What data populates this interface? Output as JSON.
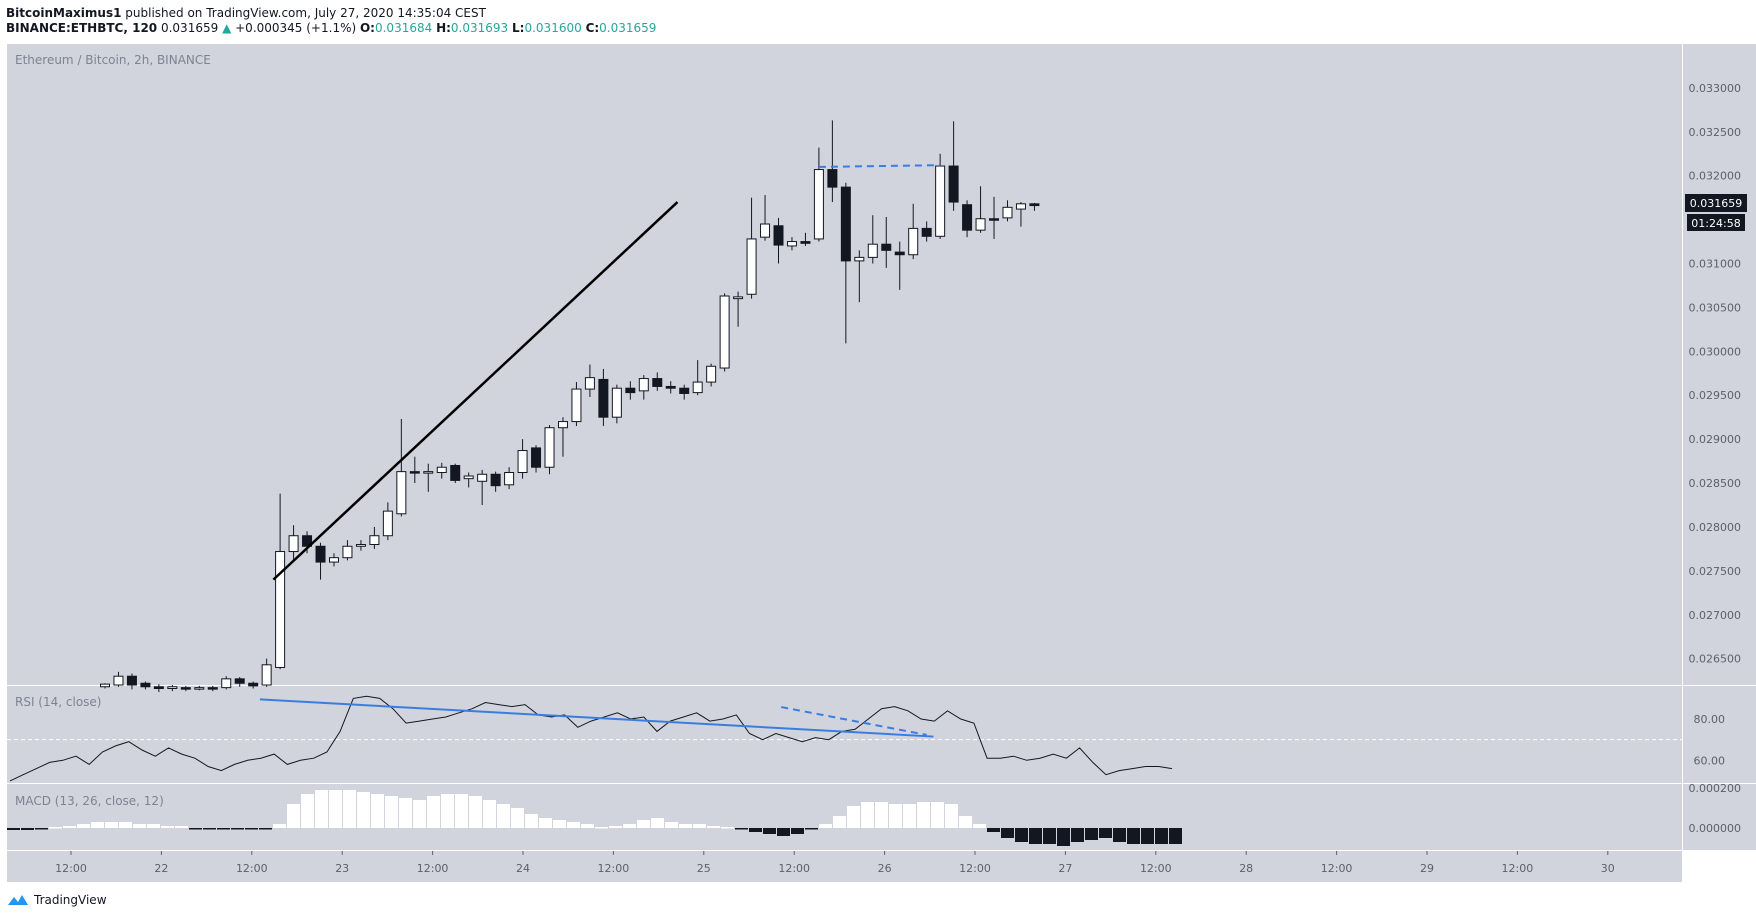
{
  "header": {
    "author": "BitcoinMaximus1",
    "published_text": "published on TradingView.com, July 27, 2020 14:35:04 CEST",
    "symbol": "BINANCE:ETHBTC, 120",
    "last": "0.031659",
    "change_arrow": "▲",
    "change": "+0.000345 (+1.1%)",
    "o_label": "O:",
    "o": "0.031684",
    "h_label": "H:",
    "h": "0.031693",
    "l_label": "L:",
    "l": "0.031600",
    "c_label": "C:",
    "c": "0.031659"
  },
  "footer": {
    "brand": "TradingView"
  },
  "colors": {
    "pane_bg": "#d1d4dc",
    "up_body": "#ffffff",
    "down_body": "#131722",
    "trendline": "#000000",
    "divergence_line": "#3a7de0",
    "rsi_line": "#131722",
    "accent_green": "#26a69a"
  },
  "chart_data": [
    {
      "type": "candlestick",
      "title": "Ethereum / Bitcoin, 2h, BINANCE",
      "x_ticks": [
        "12:00",
        "22",
        "12:00",
        "23",
        "12:00",
        "24",
        "12:00",
        "25",
        "12:00",
        "26",
        "12:00",
        "27",
        "12:00",
        "28",
        "12:00",
        "29",
        "12:00",
        "30"
      ],
      "y_ticks": [
        "0.033000",
        "0.032500",
        "0.032000",
        "0.031500",
        "0.031000",
        "0.030500",
        "0.030000",
        "0.029500",
        "0.029000",
        "0.028500",
        "0.028000",
        "0.027500",
        "0.027000",
        "0.026500"
      ],
      "ylim": [
        0.0262,
        0.0335
      ],
      "last_price_label": "0.031659",
      "countdown_label": "01:24:58",
      "candles": [
        [
          0.02618,
          0.02621,
          0.02616,
          0.02622
        ],
        [
          0.0262,
          0.0263,
          0.02618,
          0.02635
        ],
        [
          0.0263,
          0.0262,
          0.02615,
          0.02633
        ],
        [
          0.02622,
          0.02618,
          0.02615,
          0.02624
        ],
        [
          0.02618,
          0.02616,
          0.02612,
          0.02621
        ],
        [
          0.02616,
          0.02618,
          0.02613,
          0.0262
        ],
        [
          0.02617,
          0.02616,
          0.02613,
          0.02619
        ],
        [
          0.02616,
          0.02617,
          0.02614,
          0.02619
        ],
        [
          0.02617,
          0.02616,
          0.02613,
          0.02619
        ],
        [
          0.02617,
          0.02627,
          0.02615,
          0.0263
        ],
        [
          0.02627,
          0.02622,
          0.02618,
          0.02629
        ],
        [
          0.02622,
          0.02619,
          0.02616,
          0.02624
        ],
        [
          0.0262,
          0.02643,
          0.02618,
          0.0265
        ],
        [
          0.0264,
          0.02772,
          0.02638,
          0.02838
        ],
        [
          0.02772,
          0.0279,
          0.02762,
          0.02802
        ],
        [
          0.0279,
          0.02778,
          0.0277,
          0.02795
        ],
        [
          0.02778,
          0.0276,
          0.0274,
          0.02782
        ],
        [
          0.0276,
          0.02765,
          0.02755,
          0.0277
        ],
        [
          0.02765,
          0.02778,
          0.02762,
          0.02785
        ],
        [
          0.02778,
          0.0278,
          0.02773,
          0.02785
        ],
        [
          0.0278,
          0.0279,
          0.02775,
          0.028
        ],
        [
          0.0279,
          0.02818,
          0.02785,
          0.02828
        ],
        [
          0.02815,
          0.02863,
          0.02812,
          0.02923
        ],
        [
          0.02863,
          0.02862,
          0.0285,
          0.0288
        ],
        [
          0.02862,
          0.02863,
          0.0284,
          0.02872
        ],
        [
          0.02862,
          0.02868,
          0.02855,
          0.02873
        ],
        [
          0.0287,
          0.02853,
          0.0285,
          0.02872
        ],
        [
          0.02855,
          0.02858,
          0.02845,
          0.02862
        ],
        [
          0.02852,
          0.0286,
          0.02825,
          0.02865
        ],
        [
          0.0286,
          0.02847,
          0.0284,
          0.02863
        ],
        [
          0.02848,
          0.02862,
          0.02843,
          0.02868
        ],
        [
          0.02862,
          0.02887,
          0.02855,
          0.029
        ],
        [
          0.0289,
          0.02868,
          0.02862,
          0.02893
        ],
        [
          0.02868,
          0.02913,
          0.0286,
          0.02916
        ],
        [
          0.02913,
          0.0292,
          0.0288,
          0.02925
        ],
        [
          0.0292,
          0.02957,
          0.02915,
          0.02965
        ],
        [
          0.02957,
          0.0297,
          0.02948,
          0.02985
        ],
        [
          0.02968,
          0.02925,
          0.02915,
          0.0298
        ],
        [
          0.02925,
          0.02958,
          0.02918,
          0.02962
        ],
        [
          0.02958,
          0.02953,
          0.02945,
          0.02966
        ],
        [
          0.02955,
          0.02969,
          0.02945,
          0.02973
        ],
        [
          0.02969,
          0.0296,
          0.02955,
          0.02976
        ],
        [
          0.0296,
          0.02958,
          0.02952,
          0.02966
        ],
        [
          0.02958,
          0.02952,
          0.02945,
          0.02962
        ],
        [
          0.02953,
          0.02965,
          0.0295,
          0.0299
        ],
        [
          0.02965,
          0.02983,
          0.0296,
          0.02986
        ],
        [
          0.02981,
          0.03063,
          0.02977,
          0.03066
        ],
        [
          0.0306,
          0.03062,
          0.03028,
          0.03068
        ],
        [
          0.03065,
          0.03128,
          0.0306,
          0.03175
        ],
        [
          0.0313,
          0.03145,
          0.03126,
          0.03178
        ],
        [
          0.03143,
          0.03121,
          0.031,
          0.03152
        ],
        [
          0.0312,
          0.03125,
          0.03115,
          0.0313
        ],
        [
          0.03125,
          0.03123,
          0.0312,
          0.03135
        ],
        [
          0.03128,
          0.03207,
          0.03125,
          0.03232
        ],
        [
          0.03207,
          0.03187,
          0.0317,
          0.03263
        ],
        [
          0.03187,
          0.03103,
          0.03009,
          0.03192
        ],
        [
          0.03103,
          0.03107,
          0.03056,
          0.03115
        ],
        [
          0.03107,
          0.03122,
          0.031,
          0.03155
        ],
        [
          0.03122,
          0.03115,
          0.03095,
          0.03153
        ],
        [
          0.03113,
          0.0311,
          0.0307,
          0.03125
        ],
        [
          0.0311,
          0.0314,
          0.03105,
          0.03168
        ],
        [
          0.0314,
          0.03131,
          0.03125,
          0.03148
        ],
        [
          0.03131,
          0.03211,
          0.03128,
          0.03225
        ],
        [
          0.03211,
          0.0317,
          0.0316,
          0.03262
        ],
        [
          0.03167,
          0.03138,
          0.0313,
          0.03172
        ],
        [
          0.03138,
          0.03151,
          0.03135,
          0.03188
        ],
        [
          0.03151,
          0.0315,
          0.03128,
          0.03176
        ],
        [
          0.03152,
          0.03164,
          0.03148,
          0.03172
        ],
        [
          0.03162,
          0.03168,
          0.03142,
          0.0317
        ],
        [
          0.03168,
          0.03166,
          0.0316,
          0.03169
        ]
      ],
      "trendline": {
        "x": [
          12.5,
          42.5
        ],
        "y": [
          0.0274,
          0.0317
        ]
      },
      "dashed_line": {
        "x": [
          53.0,
          62.0
        ],
        "y": [
          0.0321,
          0.03212
        ]
      }
    },
    {
      "type": "line",
      "title": "RSI (14, close)",
      "y_ticks": [
        "80.00",
        "60.00"
      ],
      "ylim": [
        49,
        96
      ],
      "reference_level": 70,
      "values": [
        50,
        53,
        56,
        59,
        60,
        62,
        58,
        64,
        67,
        69,
        65,
        62,
        66,
        63,
        61,
        57,
        55,
        58,
        60,
        61,
        63,
        58,
        60,
        61,
        64,
        74,
        90,
        91,
        90,
        85,
        78,
        79,
        80,
        81,
        83,
        85,
        88,
        87,
        86,
        87,
        82,
        81,
        82,
        76,
        79,
        81,
        83,
        80,
        81,
        74,
        79,
        81,
        83,
        79,
        80,
        82,
        73,
        70,
        73,
        71,
        69,
        71,
        70,
        74,
        75,
        80,
        85,
        86,
        84,
        80,
        79,
        84,
        80,
        78,
        61,
        61,
        62,
        60,
        61,
        63,
        61,
        66,
        59,
        53,
        55,
        56,
        57,
        57,
        56
      ],
      "blue_line": {
        "x": [
          11.5,
          61.5
        ],
        "y": [
          89.5,
          71.5
        ]
      },
      "dashed_line": {
        "x": [
          50.2,
          61.0
        ],
        "y": [
          85.8,
          72.3
        ]
      }
    },
    {
      "type": "histogram",
      "title": "MACD (13, 26, close, 12)",
      "y_ticks": [
        "0.000200",
        "0.000000"
      ],
      "ylim": [
        -0.00011,
        0.00022
      ],
      "values": [
        -1e-05,
        -1e-05,
        -5e-06,
        5e-06,
        1e-05,
        2e-05,
        3e-05,
        3e-05,
        3e-05,
        2e-05,
        2e-05,
        1e-05,
        1e-05,
        -5e-06,
        -5e-06,
        -5e-06,
        -5e-06,
        -5e-06,
        -5e-06,
        2e-05,
        0.00012,
        0.00017,
        0.00019,
        0.00019,
        0.00019,
        0.00018,
        0.00017,
        0.00016,
        0.00015,
        0.00014,
        0.00016,
        0.00017,
        0.00017,
        0.00016,
        0.00014,
        0.00012,
        0.0001,
        7e-05,
        5e-05,
        4e-05,
        3e-05,
        2e-05,
        5e-06,
        1e-05,
        2e-05,
        4e-05,
        5e-05,
        3e-05,
        2e-05,
        2e-05,
        1e-05,
        5e-06,
        -5e-06,
        -2e-05,
        -3e-05,
        -4e-05,
        -3e-05,
        -5e-06,
        2e-05,
        6e-05,
        0.00011,
        0.00013,
        0.00013,
        0.00012,
        0.00012,
        0.00013,
        0.00013,
        0.00012,
        6e-05,
        2e-05,
        -2e-05,
        -5e-05,
        -7e-05,
        -8e-05,
        -8e-05,
        -9e-05,
        -7e-05,
        -6e-05,
        -5e-05,
        -7e-05,
        -8e-05,
        -8e-05,
        -8e-05,
        -8e-05
      ]
    }
  ]
}
